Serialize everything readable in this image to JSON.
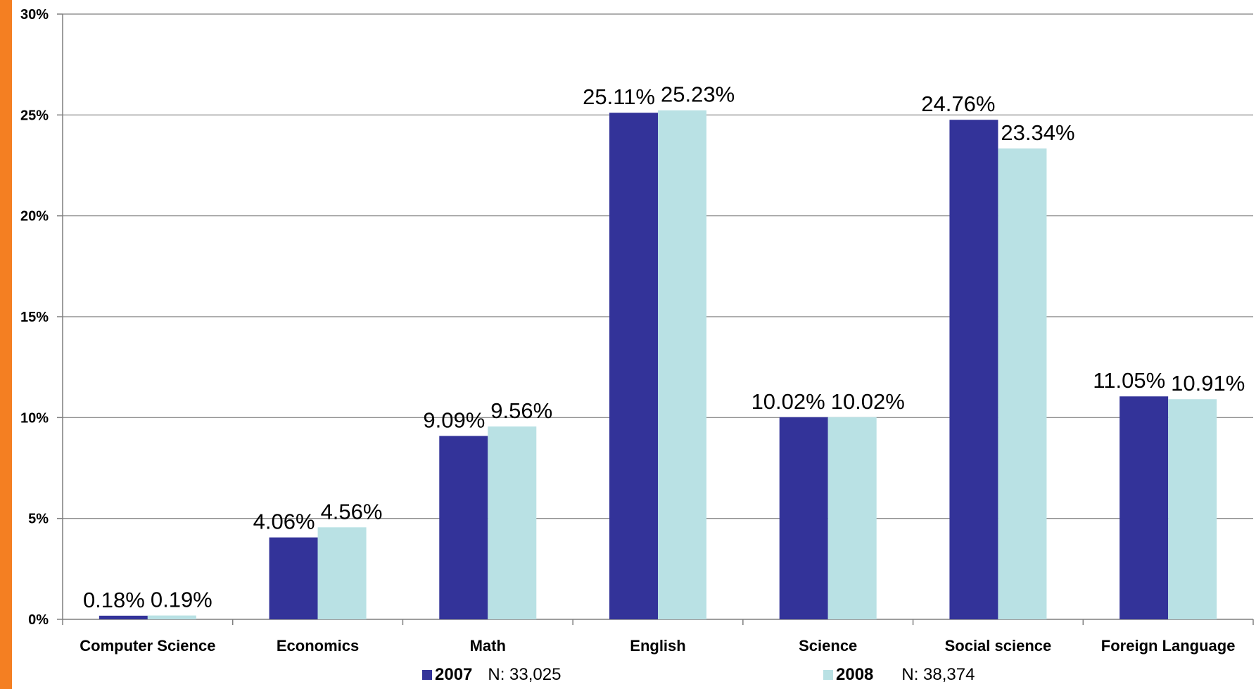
{
  "accent_color": "#f47f22",
  "chart_data": {
    "type": "bar",
    "categories": [
      "Computer Science",
      "Economics",
      "Math",
      "English",
      "Science",
      "Social science",
      "Foreign Language"
    ],
    "series": [
      {
        "name": "2007",
        "color": "#333399",
        "values": [
          0.18,
          4.06,
          9.09,
          25.11,
          10.02,
          24.76,
          11.05
        ],
        "labels": [
          "0.18%",
          "4.06%",
          "9.09%",
          "25.11%",
          "10.02%",
          "24.76%",
          "11.05%"
        ]
      },
      {
        "name": "2008",
        "color": "#b9e1e4",
        "values": [
          0.19,
          4.56,
          9.56,
          25.23,
          10.02,
          23.34,
          10.91
        ],
        "labels": [
          "0.19%",
          "4.56%",
          "9.56%",
          "25.23%",
          "10.02%",
          "23.34%",
          "10.91%"
        ]
      }
    ],
    "ylim": [
      0,
      30
    ],
    "yticks": [
      0,
      5,
      10,
      15,
      20,
      25,
      30
    ],
    "ytick_labels": [
      "0%",
      "5%",
      "10%",
      "15%",
      "20%",
      "25%",
      "30%"
    ],
    "grid": true,
    "legend_placement": "bottom"
  },
  "legend": [
    {
      "name": "2007",
      "note": "N: 33,025"
    },
    {
      "name": "2008",
      "note": "N: 38,374"
    }
  ]
}
